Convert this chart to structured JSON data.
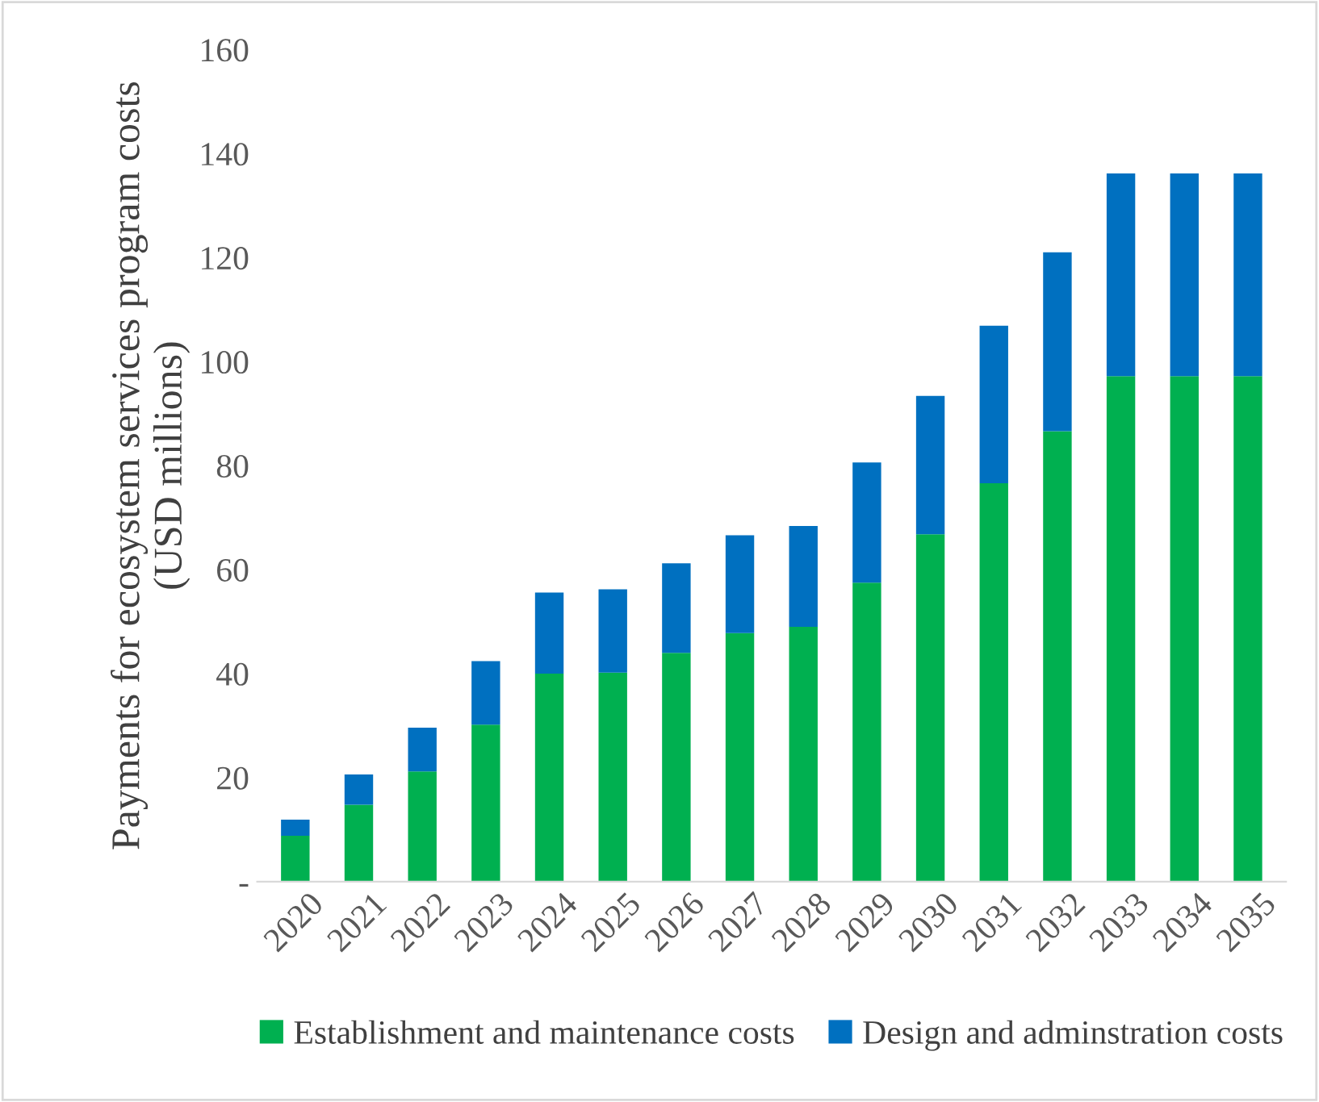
{
  "chart_data": {
    "type": "bar",
    "stacked": true,
    "ylabel": "Payments for ecosystem services program costs\n(USD millions)",
    "categories": [
      "2020",
      "2021",
      "2022",
      "2023",
      "2024",
      "2025",
      "2026",
      "2027",
      "2028",
      "2029",
      "2030",
      "2031",
      "2032",
      "2033",
      "2034",
      "2035"
    ],
    "series": [
      {
        "name": "Establishment and maintenance costs",
        "color": "#00b050",
        "values": [
          8.8,
          14.8,
          21.2,
          30.2,
          40,
          40.2,
          44,
          47.8,
          49,
          57.5,
          66.8,
          76.6,
          86.6,
          97.2,
          97.2,
          97.2
        ]
      },
      {
        "name": "Design and adminstration costs",
        "color": "#0070c0",
        "values": [
          3.1,
          5.8,
          8.4,
          12.2,
          15.6,
          16,
          17.2,
          18.8,
          19.4,
          23.1,
          26.6,
          30.3,
          34.4,
          39,
          39,
          39
        ]
      }
    ],
    "ylim": [
      0,
      160
    ],
    "yticks": [
      {
        "value": 0,
        "label": "-"
      },
      20,
      40,
      60,
      80,
      100,
      120,
      140,
      160
    ],
    "grid": false,
    "legend": "bottom"
  }
}
